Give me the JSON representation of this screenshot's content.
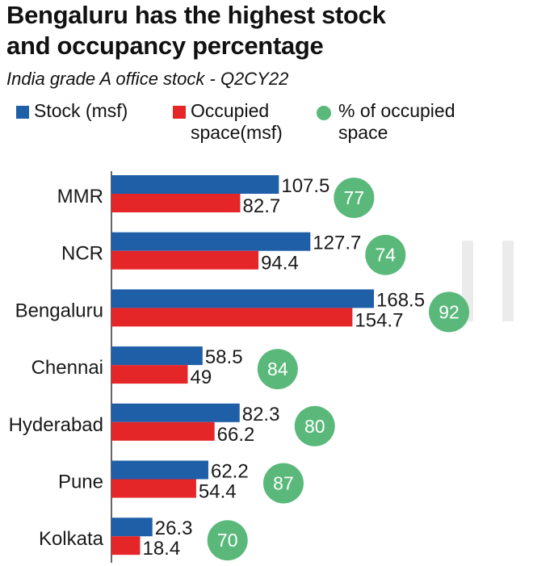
{
  "title_lines": [
    "Bengaluru has the highest stock",
    "and occupancy percentage"
  ],
  "subtitle": "India grade A office stock -  Q2CY22",
  "legend": [
    {
      "lines": [
        "Stock (msf)"
      ],
      "color": "#1f5fa8",
      "shape": "square"
    },
    {
      "lines": [
        "Occupied",
        "space(msf)"
      ],
      "color": "#e42628",
      "shape": "square"
    },
    {
      "lines": [
        "% of occupied",
        "space"
      ],
      "color": "#5ab97a",
      "shape": "circle"
    }
  ],
  "colors": {
    "stock": "#1f5fa8",
    "occupied": "#e42628",
    "percent": "#5ab97a",
    "percent_text": "#ffffff"
  },
  "chart_data": {
    "type": "bar",
    "orientation": "horizontal",
    "categories": [
      "MMR",
      "NCR",
      "Bengaluru",
      "Chennai",
      "Hyderabad",
      "Pune",
      "Kolkata"
    ],
    "series": [
      {
        "name": "Stock (msf)",
        "values": [
          107.5,
          127.7,
          168.5,
          58.5,
          82.3,
          62.2,
          26.3
        ],
        "labels": [
          "107.5",
          "127.7",
          "168.5",
          "58.5",
          "82.3",
          "62.2",
          "26.3"
        ]
      },
      {
        "name": "Occupied space(msf)",
        "values": [
          82.7,
          94.4,
          154.7,
          49,
          66.2,
          54.4,
          18.4
        ],
        "labels": [
          "82.7",
          "94.4",
          "154.7",
          "49",
          "66.2",
          "54.4",
          "18.4"
        ]
      },
      {
        "name": "% of occupied space",
        "values": [
          77,
          74,
          92,
          84,
          80,
          87,
          70
        ],
        "labels": [
          "77",
          "74",
          "92",
          "84",
          "80",
          "87",
          "70"
        ]
      }
    ],
    "xlim": [
      0,
      168.5
    ],
    "grid": false,
    "legend_position": "top"
  }
}
